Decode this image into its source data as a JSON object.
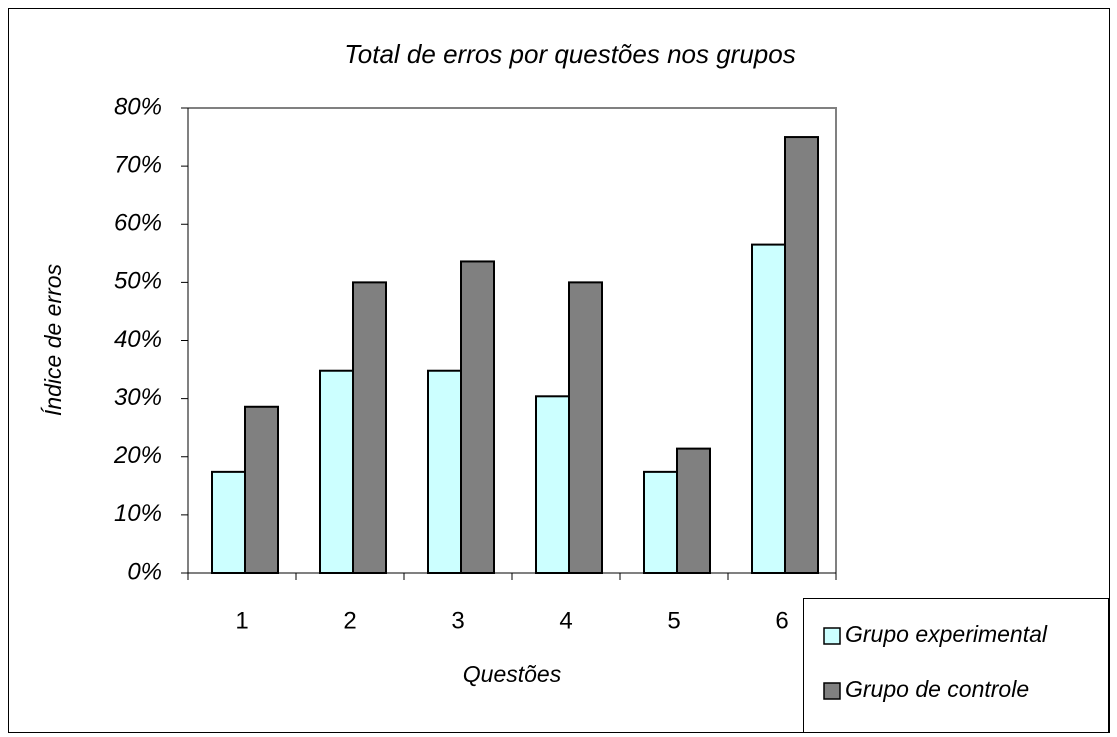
{
  "chart_data": {
    "type": "bar",
    "title": "Total de erros por questões nos grupos",
    "x_label": "Questões",
    "y_label": "Índice de erros",
    "categories": [
      "1",
      "2",
      "3",
      "4",
      "5",
      "6"
    ],
    "series": [
      {
        "name": "Grupo experimental",
        "color": "#ccffff",
        "values": [
          17.4,
          34.8,
          34.8,
          30.4,
          17.4,
          56.5
        ]
      },
      {
        "name": "Grupo de controle",
        "color": "#808080",
        "values": [
          28.6,
          50,
          53.6,
          50,
          21.4,
          75
        ]
      }
    ],
    "ylim": [
      0,
      80
    ],
    "yticks": [
      {
        "value": 0,
        "label": "0%"
      },
      {
        "value": 10,
        "label": "10%"
      },
      {
        "value": 20,
        "label": "20%"
      },
      {
        "value": 30,
        "label": "30%"
      },
      {
        "value": 40,
        "label": "40%"
      },
      {
        "value": 50,
        "label": "50%"
      },
      {
        "value": 60,
        "label": "60%"
      },
      {
        "value": 70,
        "label": "70%"
      },
      {
        "value": 80,
        "label": "80%"
      }
    ],
    "legend": "bottom-right"
  }
}
